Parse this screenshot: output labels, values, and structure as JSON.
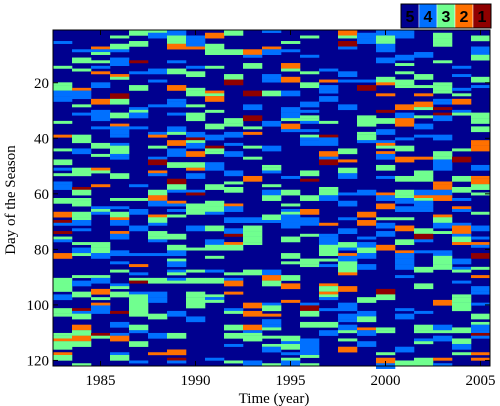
{
  "chart_data": {
    "type": "heatmap",
    "xlabel": "Time (year)",
    "ylabel": "Day of the Season",
    "x_ticks": [
      1985,
      1990,
      1995,
      2000,
      2005
    ],
    "y_ticks": [
      20,
      40,
      60,
      80,
      100,
      120
    ],
    "xlim": [
      1982.5,
      2005.5
    ],
    "ylim": [
      1,
      122
    ],
    "years": [
      1983,
      1984,
      1985,
      1986,
      1987,
      1988,
      1989,
      1990,
      1991,
      1992,
      1993,
      1994,
      1995,
      1996,
      1997,
      1998,
      1999,
      2000,
      2001,
      2002,
      2003,
      2004,
      2005
    ],
    "days": 122,
    "levels": [
      5,
      4,
      3,
      2,
      1
    ],
    "level_colors": {
      "5": "#00008f",
      "4": "#0070ff",
      "3": "#70ff8f",
      "2": "#ff7000",
      "1": "#8f0000"
    },
    "background_level": 5,
    "level_fractions": {
      "4": 0.16,
      "3": 0.15,
      "2": 0.05,
      "1": 0.025
    },
    "legend": {
      "placement": "top-right",
      "entries": [
        "5",
        "4",
        "3",
        "2",
        "1"
      ]
    }
  }
}
